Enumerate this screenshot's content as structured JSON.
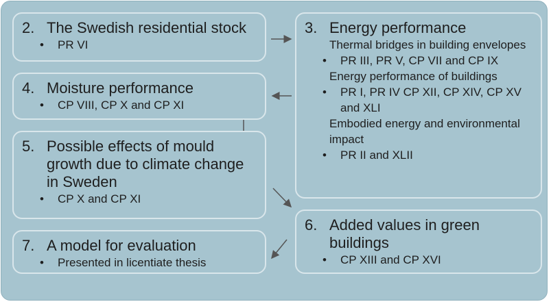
{
  "nodes": [
    {
      "number": "2.",
      "title": "The Swedish residential stock",
      "bullets": [
        "PR VI"
      ]
    },
    {
      "number": "3.",
      "title": "Energy performance",
      "subsections": [
        {
          "heading": "Thermal bridges in building envelopes",
          "bullets": [
            "PR III, PR V, CP VII and CP IX"
          ]
        },
        {
          "heading": "Energy performance of buildings",
          "bullets": [
            "PR I, PR IV CP XII, CP XIV, CP XV and XLI"
          ]
        },
        {
          "heading": "Embodied energy and environmental impact",
          "bullets": [
            "PR II and XLII"
          ]
        }
      ]
    },
    {
      "number": "4.",
      "title": "Moisture performance",
      "bullets": [
        "CP VIII, CP X and CP XI"
      ]
    },
    {
      "number": "5.",
      "title": "Possible effects of mould growth due to climate change in Sweden",
      "bullets": [
        "CP X and CP XI"
      ]
    },
    {
      "number": "6.",
      "title": "Added values in green buildings",
      "bullets": [
        "CP XIII and CP XVI"
      ]
    },
    {
      "number": "7.",
      "title": "A model for evaluation",
      "bullets": [
        "Presented in licentiate thesis"
      ]
    }
  ]
}
